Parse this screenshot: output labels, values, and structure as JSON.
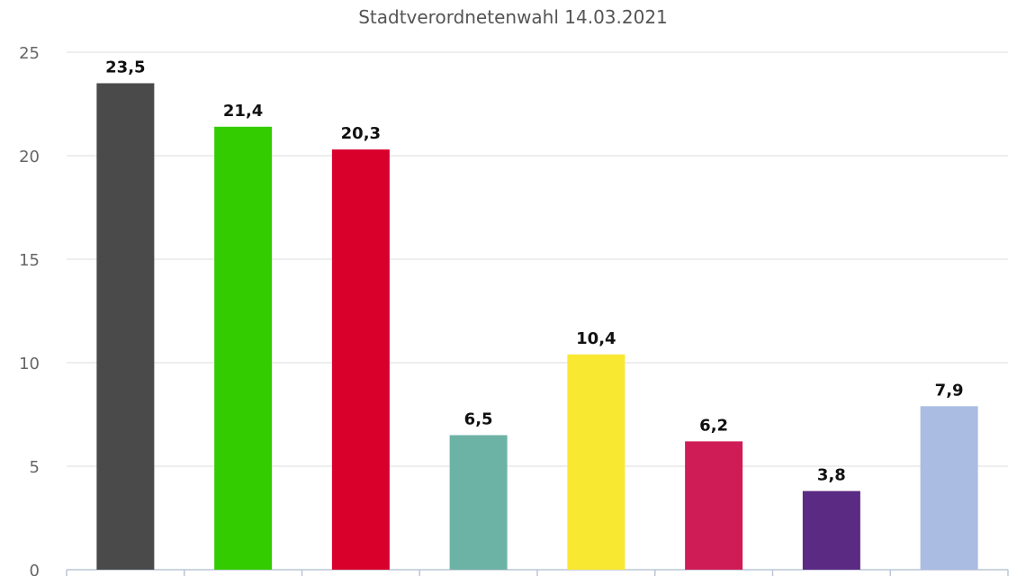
{
  "chart_data": {
    "type": "bar",
    "title": "Stadtverordnetenwahl 14.03.2021",
    "categories": [
      "",
      "",
      "",
      "",
      "",
      "",
      "",
      ""
    ],
    "values": [
      23.5,
      21.4,
      20.3,
      6.5,
      10.4,
      6.2,
      3.8,
      7.9
    ],
    "value_labels": [
      "23,5",
      "21,4",
      "20,3",
      "6,5",
      "10,4",
      "6,2",
      "3,8",
      "7,9"
    ],
    "colors": [
      "#4a4a4a",
      "#33cc00",
      "#d9002c",
      "#6db3a5",
      "#f9e832",
      "#cf1c57",
      "#5b2a83",
      "#abbce3"
    ],
    "ylim": [
      0,
      25
    ],
    "yticks": [
      0,
      5,
      10,
      15,
      20,
      25
    ],
    "ytick_labels": [
      "0",
      "5",
      "10",
      "15",
      "20",
      "25"
    ],
    "xlabel": "",
    "ylabel": "",
    "grid": true,
    "legend": "none"
  }
}
